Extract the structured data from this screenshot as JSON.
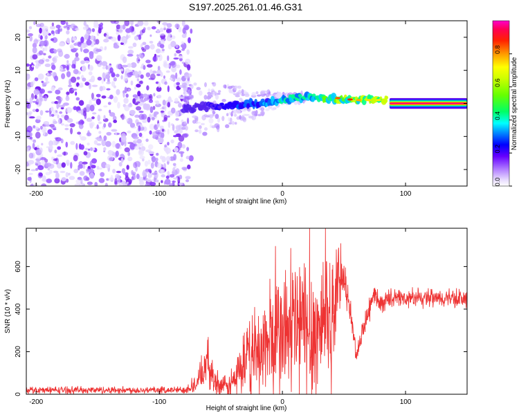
{
  "figure_title": "S197.2025.261.01.46.G31",
  "chart_data": [
    {
      "type": "heatmap",
      "xlabel": "Height of straight line (km)",
      "ylabel": "Frequency (Hz)",
      "xlim": [
        -208,
        150
      ],
      "ylim": [
        -25,
        25
      ],
      "xticks": [
        -200,
        -100,
        0,
        100
      ],
      "yticks": [
        -20,
        -10,
        0,
        10,
        20
      ],
      "colorbar": {
        "label": "Normalized spectral amplitude",
        "range": [
          0,
          1
        ],
        "ticks": [
          0.0,
          0.2,
          0.4,
          0.6,
          0.8
        ],
        "colors": [
          "#ffffff",
          "#d9c2ff",
          "#9933ff",
          "#5500ee",
          "#0000ff",
          "#00ccff",
          "#00ff66",
          "#88ff00",
          "#ffff00",
          "#ff8800",
          "#ff0000",
          "#ff00aa"
        ]
      },
      "ridge": {
        "description": "dominant frequency track",
        "x": [
          -80,
          -60,
          -40,
          -20,
          0,
          20,
          40,
          60,
          85,
          87,
          150
        ],
        "freq": [
          -1.5,
          -1.0,
          -0.5,
          0.0,
          1.0,
          2.0,
          1.5,
          1.0,
          1.0,
          -0.5,
          0.0
        ]
      },
      "noise_region_x": [
        -208,
        -80
      ]
    },
    {
      "type": "line",
      "xlabel": "Height of straight line (km)",
      "ylabel": "SNR (10 * v/v)",
      "xlim": [
        -208,
        150
      ],
      "ylim": [
        0,
        780
      ],
      "xticks": [
        -200,
        -100,
        0,
        100
      ],
      "yticks": [
        0,
        200,
        400,
        600
      ],
      "line_color": "#ff3333",
      "envelope": {
        "x": [
          -208,
          -80,
          -70,
          -60,
          -55,
          -45,
          -40,
          -30,
          -20,
          -10,
          0,
          10,
          20,
          30,
          35,
          40,
          45,
          50,
          55,
          60,
          65,
          70,
          75,
          80,
          85,
          90,
          100,
          110,
          120,
          130,
          140,
          150
        ],
        "base": [
          20,
          20,
          50,
          150,
          60,
          30,
          60,
          150,
          200,
          250,
          270,
          320,
          300,
          280,
          450,
          300,
          560,
          520,
          400,
          180,
          300,
          380,
          480,
          420,
          450,
          450,
          450,
          450,
          450,
          450,
          450,
          450
        ],
        "amplitude": [
          15,
          15,
          40,
          100,
          60,
          40,
          80,
          140,
          200,
          260,
          300,
          350,
          340,
          330,
          300,
          300,
          120,
          80,
          60,
          40,
          50,
          50,
          40,
          40,
          40,
          40,
          40,
          40,
          40,
          40,
          40,
          40
        ]
      }
    }
  ]
}
